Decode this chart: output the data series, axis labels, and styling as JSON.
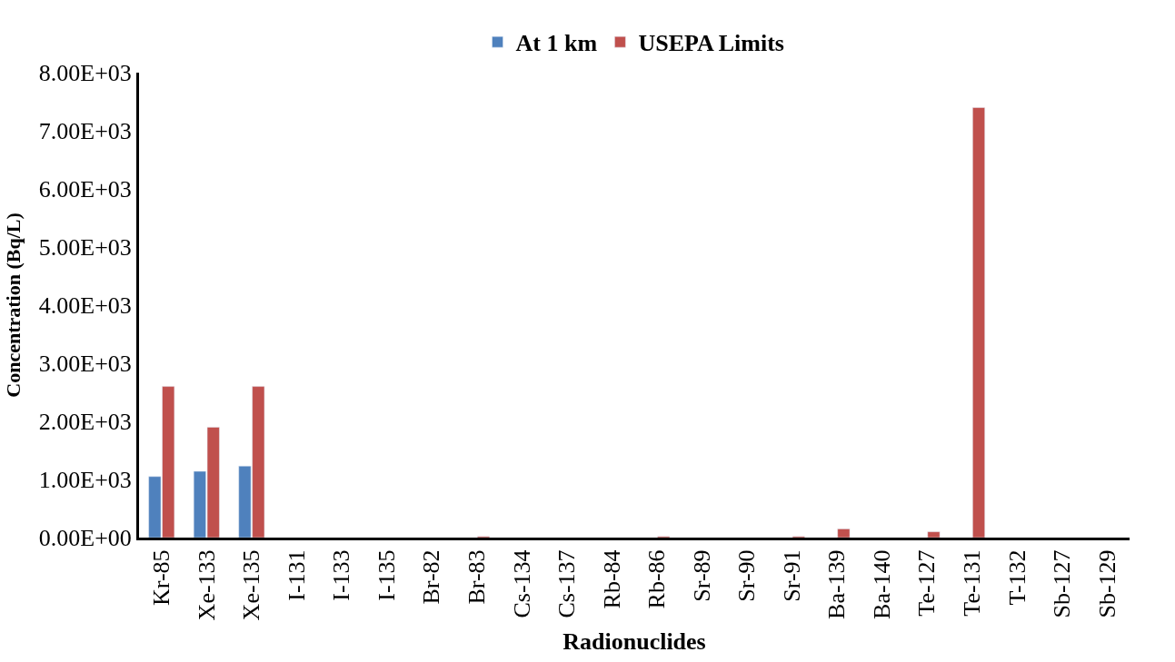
{
  "chart_data": {
    "type": "bar",
    "xlabel": "Radionuclides",
    "ylabel": "Concentration (Bq/L)",
    "categories": [
      "Kr-85",
      "Xe-133",
      "Xe-135",
      "I-131",
      "I-133",
      "I-135",
      "Br-82",
      "Br-83",
      "Cs-134",
      "Cs-137",
      "Rb-84",
      "Rb-86",
      "Sr-89",
      "Sr-90",
      "Sr-91",
      "Ba-139",
      "Ba-140",
      "Te-127",
      "Te-131",
      "T-132",
      "Sb-127",
      "Sb-129"
    ],
    "series": [
      {
        "name": "At 1 km",
        "color": "#4f81bd",
        "values": [
          1050,
          1140,
          1230,
          null,
          null,
          null,
          null,
          null,
          null,
          null,
          null,
          null,
          null,
          null,
          null,
          null,
          null,
          null,
          null,
          null,
          null,
          null
        ]
      },
      {
        "name": "USEPA Limits",
        "color": "#c0504d",
        "values": [
          2600,
          1900,
          2600,
          null,
          null,
          null,
          null,
          20,
          null,
          null,
          null,
          20,
          null,
          null,
          20,
          150,
          null,
          100,
          7400,
          null,
          null,
          null
        ]
      }
    ],
    "ylim": [
      0,
      8000
    ],
    "yticks": [
      {
        "value": 0,
        "label": "0.00E+00"
      },
      {
        "value": 1000,
        "label": "1.00E+03"
      },
      {
        "value": 2000,
        "label": "2.00E+03"
      },
      {
        "value": 3000,
        "label": "3.00E+03"
      },
      {
        "value": 4000,
        "label": "4.00E+03"
      },
      {
        "value": 5000,
        "label": "5.00E+03"
      },
      {
        "value": 6000,
        "label": "6.00E+03"
      },
      {
        "value": 7000,
        "label": "7.00E+03"
      },
      {
        "value": 8000,
        "label": "8.00E+03"
      }
    ],
    "legend": "top"
  }
}
